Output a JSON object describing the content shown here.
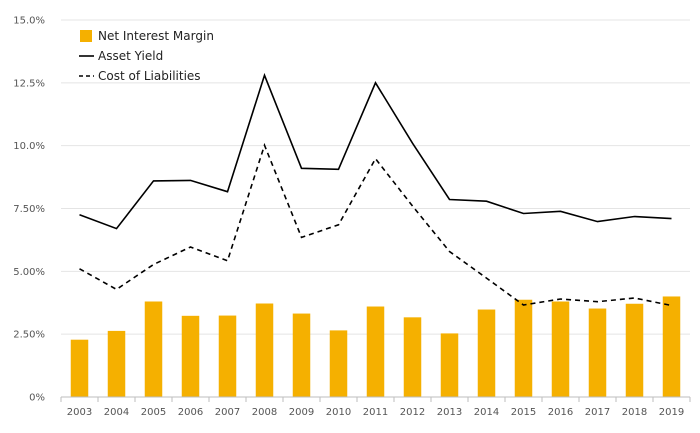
{
  "chart_data": {
    "type": "bar+line",
    "categories": [
      "2003",
      "2004",
      "2005",
      "2006",
      "2007",
      "2008",
      "2009",
      "2010",
      "2011",
      "2012",
      "2013",
      "2014",
      "2015",
      "2016",
      "2017",
      "2018",
      "2019"
    ],
    "series": [
      {
        "name": "Net Interest Margin",
        "kind": "bar",
        "color": "#f5b000",
        "values": [
          2.28,
          2.63,
          3.8,
          3.23,
          3.24,
          3.72,
          3.32,
          2.65,
          3.6,
          3.17,
          2.53,
          3.48,
          3.87,
          3.8,
          3.52,
          3.71,
          4.0
        ]
      },
      {
        "name": "Asset Yield",
        "kind": "line",
        "color": "#000000",
        "dash": "solid",
        "values": [
          7.25,
          6.7,
          8.6,
          8.62,
          8.17,
          12.8,
          9.1,
          9.06,
          12.5,
          10.1,
          7.86,
          7.79,
          7.3,
          7.39,
          6.98,
          7.18,
          7.1
        ]
      },
      {
        "name": "Cost of Liabilities",
        "kind": "line",
        "color": "#000000",
        "dash": "dashed",
        "values": [
          5.1,
          4.28,
          5.27,
          5.97,
          5.42,
          10.02,
          6.35,
          6.85,
          9.48,
          7.6,
          5.79,
          4.73,
          3.66,
          3.9,
          3.79,
          3.94,
          3.64
        ]
      }
    ],
    "y_ticks": [
      "0%",
      "2.50%",
      "5.00%",
      "7.50%",
      "10.0%",
      "12.5%",
      "15.0%"
    ],
    "y_tick_values": [
      0,
      2.5,
      5,
      7.5,
      10,
      12.5,
      15
    ],
    "ylim": [
      0,
      15
    ],
    "grid": true,
    "legend_position": "top-left",
    "title": "",
    "xlabel": "",
    "ylabel": ""
  }
}
